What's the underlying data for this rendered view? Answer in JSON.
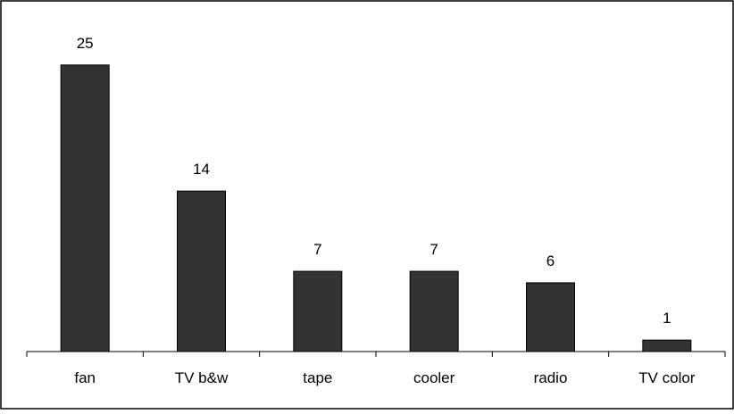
{
  "chart_data": {
    "type": "bar",
    "categories": [
      "fan",
      "TV b&w",
      "tape",
      "cooler",
      "radio",
      "TV color"
    ],
    "values": [
      25,
      14,
      7,
      7,
      6,
      1
    ],
    "data_labels": [
      "25",
      "14",
      "7",
      "7",
      "6",
      "1"
    ],
    "ylim": [
      0,
      26
    ],
    "grid": false,
    "legend": "none",
    "bar_color": "#333333",
    "border_color": "#000000"
  }
}
